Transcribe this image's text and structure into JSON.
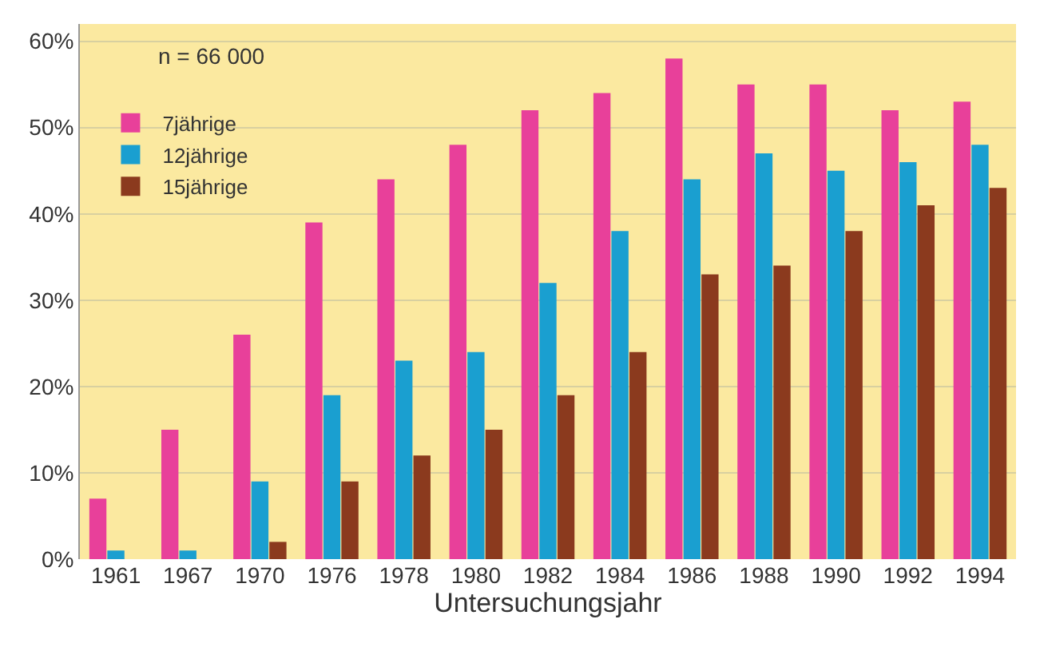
{
  "chart_data": {
    "type": "bar",
    "xlabel": "Untersuchungsjahr",
    "categories": [
      "1961",
      "1967",
      "1970",
      "1976",
      "1978",
      "1980",
      "1982",
      "1984",
      "1986",
      "1988",
      "1990",
      "1992",
      "1994"
    ],
    "series": [
      {
        "name": "7jährige",
        "color": "#e8409a",
        "values": [
          7,
          15,
          26,
          39,
          44,
          48,
          52,
          54,
          58,
          55,
          55,
          52,
          53
        ]
      },
      {
        "name": "12jährige",
        "color": "#1a9fd0",
        "values": [
          1,
          1,
          9,
          19,
          23,
          24,
          32,
          38,
          44,
          47,
          45,
          46,
          48
        ]
      },
      {
        "name": "15jährige",
        "color": "#8b3a1e",
        "values": [
          0,
          0,
          2,
          9,
          12,
          15,
          19,
          24,
          33,
          34,
          38,
          41,
          43
        ]
      }
    ],
    "ylim": [
      0,
      62
    ],
    "yticks": [
      {
        "value": 0,
        "label": "0%"
      },
      {
        "value": 10,
        "label": "10%"
      },
      {
        "value": 20,
        "label": "20%"
      },
      {
        "value": 30,
        "label": "30%"
      },
      {
        "value": 40,
        "label": "40%"
      },
      {
        "value": 50,
        "label": "50%"
      },
      {
        "value": 60,
        "label": "60%"
      }
    ],
    "grid": "y",
    "legend": "top left",
    "annotations": [
      "n = 66 000"
    ]
  }
}
